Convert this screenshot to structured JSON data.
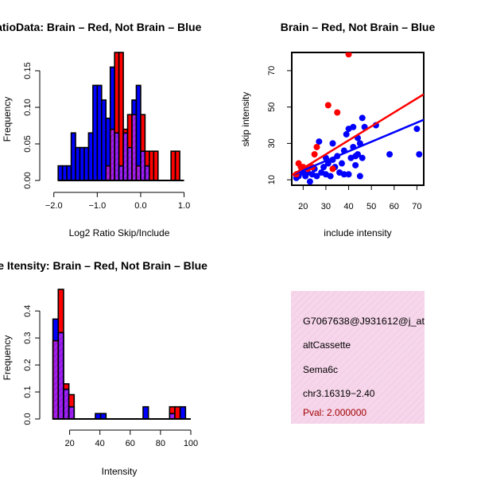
{
  "colors": {
    "brain": "#ff0000",
    "not_brain": "#0000ff",
    "overlap": "#a020f0",
    "info_bg": "#f6d6ea",
    "pval": "#a00000"
  },
  "chart_data": [
    {
      "id": "ratio",
      "type": "bar",
      "title": "RatioData: Brain – Red, Not Brain – Blue",
      "xlabel": "Log2 Ratio Skip/Include",
      "ylabel": "Frequency",
      "xlim": [
        -2.05,
        1.1
      ],
      "ylim": [
        0,
        0.175
      ],
      "xticks": [
        -2.0,
        -1.0,
        0.0,
        1.0
      ],
      "xtick_labels": [
        "−2.0",
        "−1.0",
        "0.0",
        "1.0"
      ],
      "yticks": [
        0.0,
        0.05,
        0.1,
        0.15
      ],
      "ytick_labels": [
        "0.00",
        "0.05",
        "0.10",
        "0.15"
      ],
      "bin_width": 0.1,
      "bin_starts": [
        -1.9,
        -1.8,
        -1.7,
        -1.6,
        -1.5,
        -1.4,
        -1.3,
        -1.2,
        -1.1,
        -1.0,
        -0.9,
        -0.8,
        -0.7,
        -0.6,
        -0.5,
        -0.4,
        -0.3,
        -0.2,
        -0.1,
        0.0,
        0.1,
        0.2,
        0.3,
        0.4,
        0.5,
        0.6,
        0.7,
        0.8,
        0.9
      ],
      "series": [
        {
          "name": "Brain",
          "values": [
            0,
            0,
            0,
            0,
            0,
            0,
            0,
            0,
            0,
            0,
            0,
            0.02,
            0.07,
            0.175,
            0.175,
            0.07,
            0.09,
            0.09,
            0.02,
            0.09,
            0.04,
            0.04,
            0.04,
            0,
            0,
            0,
            0.04,
            0.04,
            0
          ]
        },
        {
          "name": "Not Brain",
          "values": [
            0.02,
            0.02,
            0.02,
            0.065,
            0.045,
            0.045,
            0.045,
            0.065,
            0.13,
            0.13,
            0.11,
            0.085,
            0.155,
            0.065,
            0.02,
            0.065,
            0.045,
            0.11,
            0.13,
            0.04,
            0.02,
            0,
            0,
            0,
            0,
            0,
            0,
            0,
            0
          ]
        }
      ]
    },
    {
      "id": "scatter",
      "type": "scatter",
      "title": "Brain – Red, Not Brain – Blue",
      "xlabel": "include intensity",
      "ylabel": "skip intensity",
      "xlim": [
        15,
        73
      ],
      "ylim": [
        7,
        80
      ],
      "xticks": [
        20,
        30,
        40,
        50,
        60,
        70
      ],
      "xtick_labels": [
        "20",
        "30",
        "40",
        "50",
        "60",
        "70"
      ],
      "yticks": [
        10,
        30,
        50,
        70
      ],
      "ytick_labels": [
        "10",
        "30",
        "50",
        "70"
      ],
      "series": [
        {
          "name": "Brain",
          "points": [
            [
              17,
              13
            ],
            [
              18,
              19
            ],
            [
              19,
              17
            ],
            [
              20,
              17
            ],
            [
              22,
              16
            ],
            [
              24,
              17
            ],
            [
              25,
              24
            ],
            [
              26,
              28
            ],
            [
              31,
              51
            ],
            [
              33,
              16
            ],
            [
              35,
              47
            ],
            [
              40,
              79
            ]
          ],
          "fit": [
            [
              15,
              12.5
            ],
            [
              73,
              57
            ]
          ]
        },
        {
          "name": "Not Brain",
          "points": [
            [
              17,
              11
            ],
            [
              18,
              12
            ],
            [
              19,
              14
            ],
            [
              20,
              15
            ],
            [
              21,
              12
            ],
            [
              22,
              14
            ],
            [
              23,
              9
            ],
            [
              24,
              13
            ],
            [
              25,
              16
            ],
            [
              26,
              12
            ],
            [
              27,
              31
            ],
            [
              28,
              14
            ],
            [
              29,
              17
            ],
            [
              30,
              13
            ],
            [
              30,
              22
            ],
            [
              31,
              19
            ],
            [
              32,
              12
            ],
            [
              33,
              21
            ],
            [
              33,
              30
            ],
            [
              34,
              17
            ],
            [
              35,
              23
            ],
            [
              36,
              14
            ],
            [
              37,
              19
            ],
            [
              38,
              13
            ],
            [
              38,
              26
            ],
            [
              39,
              35
            ],
            [
              40,
              13
            ],
            [
              40,
              38
            ],
            [
              41,
              22
            ],
            [
              42,
              28
            ],
            [
              42,
              39
            ],
            [
              43,
              18
            ],
            [
              43,
              23
            ],
            [
              44,
              24
            ],
            [
              44,
              33
            ],
            [
              45,
              12
            ],
            [
              45,
              30
            ],
            [
              46,
              22
            ],
            [
              46,
              44
            ],
            [
              47,
              39
            ],
            [
              52,
              40
            ],
            [
              58,
              24
            ],
            [
              70,
              38
            ],
            [
              71,
              24
            ]
          ],
          "fit": [
            [
              15,
              12.5
            ],
            [
              73,
              43
            ]
          ]
        }
      ]
    },
    {
      "id": "intensity",
      "type": "bar",
      "title": "Gene Itensity: Brain – Red, Not Brain – Blue",
      "xlabel": "Intensity",
      "ylabel": "Frequency",
      "xlim": [
        5,
        100
      ],
      "ylim": [
        0,
        0.48
      ],
      "xticks": [
        20,
        40,
        60,
        80,
        100
      ],
      "xtick_labels": [
        "20",
        "40",
        "60",
        "80",
        "100"
      ],
      "yticks": [
        0.0,
        0.1,
        0.2,
        0.3,
        0.4
      ],
      "ytick_labels": [
        "0.0",
        "0.1",
        "0.2",
        "0.3",
        "0.4"
      ],
      "bin_width": 3.5,
      "bin_starts": [
        9,
        12.5,
        16,
        19.5,
        23,
        26.5,
        30,
        33.5,
        37,
        40.5,
        44,
        47.5,
        51,
        54.5,
        58,
        61.5,
        65,
        68.5,
        72,
        75.5,
        79,
        82.5,
        86,
        89.5,
        93,
        96.5
      ],
      "series": [
        {
          "name": "Brain",
          "values": [
            0.29,
            0.48,
            0.13,
            0.09,
            0,
            0,
            0,
            0,
            0,
            0,
            0,
            0,
            0,
            0,
            0,
            0,
            0,
            0,
            0,
            0,
            0,
            0,
            0.045,
            0.045,
            0,
            0
          ]
        },
        {
          "name": "Not Brain",
          "values": [
            0.37,
            0.32,
            0.11,
            0.045,
            0,
            0,
            0,
            0,
            0.02,
            0.02,
            0,
            0,
            0,
            0,
            0,
            0,
            0,
            0.045,
            0,
            0,
            0,
            0,
            0.02,
            0,
            0.045,
            0
          ]
        }
      ]
    }
  ],
  "info_panel": {
    "id_text": "G7067638@J931612@j_at",
    "event_type": "altCassette",
    "gene": "Sema6c",
    "location": "chr3.16319−2.40",
    "pval": "Pval: 2.000000"
  }
}
